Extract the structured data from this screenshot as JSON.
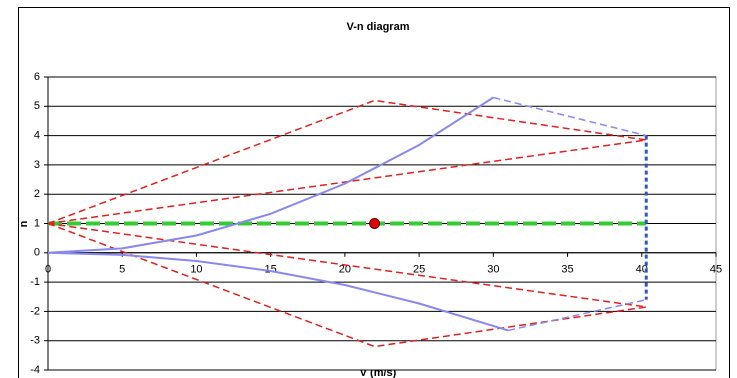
{
  "chart_data": {
    "type": "line",
    "title": "V-n diagram",
    "x_label": "V (m/s)",
    "y_label": "n",
    "xlim": [
      0,
      45
    ],
    "xticks": [
      0,
      5,
      10,
      15,
      20,
      25,
      30,
      35,
      40,
      45
    ],
    "ylim": [
      -4,
      6
    ],
    "yticks": [
      -4,
      -3,
      -2,
      -1,
      0,
      1,
      2,
      3,
      4,
      5,
      6
    ],
    "grid": true,
    "series": [
      {
        "color": "#33cc33",
        "line_style": "dashed-thick",
        "x": [
          0,
          40.3
        ],
        "y": [
          1,
          1
        ]
      },
      {
        "color": "#e02020",
        "line_style": "dashed",
        "x": [
          0,
          22,
          40.3,
          0
        ],
        "y": [
          1,
          5.2,
          3.85,
          1
        ]
      },
      {
        "color": "#e02020",
        "line_style": "dashed",
        "x": [
          0,
          22,
          40.3,
          0
        ],
        "y": [
          1,
          -3.2,
          -1.85,
          1
        ]
      },
      {
        "color": "#8888ee",
        "line_style": "solid",
        "x": [
          0,
          5,
          10,
          15,
          20,
          25,
          30
        ],
        "y": [
          0,
          0.15,
          0.59,
          1.33,
          2.36,
          3.68,
          5.3
        ]
      },
      {
        "color": "#8888ee",
        "line_style": "dashed",
        "x": [
          30,
          40.3
        ],
        "y": [
          5.3,
          4
        ]
      },
      {
        "color": "#3355cc",
        "line_style": "dotted",
        "x": [
          40.3,
          40.3
        ],
        "y": [
          4,
          -1.6
        ]
      },
      {
        "color": "#8888ee",
        "line_style": "solid",
        "x": [
          0,
          5,
          10,
          15,
          20,
          25,
          31
        ],
        "y": [
          0,
          -0.07,
          -0.28,
          -0.62,
          -1.1,
          -1.73,
          -2.65
        ]
      },
      {
        "color": "#8888ee",
        "line_style": "dashed",
        "x": [
          31,
          40.3
        ],
        "y": [
          -2.65,
          -1.6
        ]
      },
      {
        "color": "#e00000",
        "line_style": "marker",
        "x": [
          22
        ],
        "y": [
          1
        ]
      }
    ]
  }
}
